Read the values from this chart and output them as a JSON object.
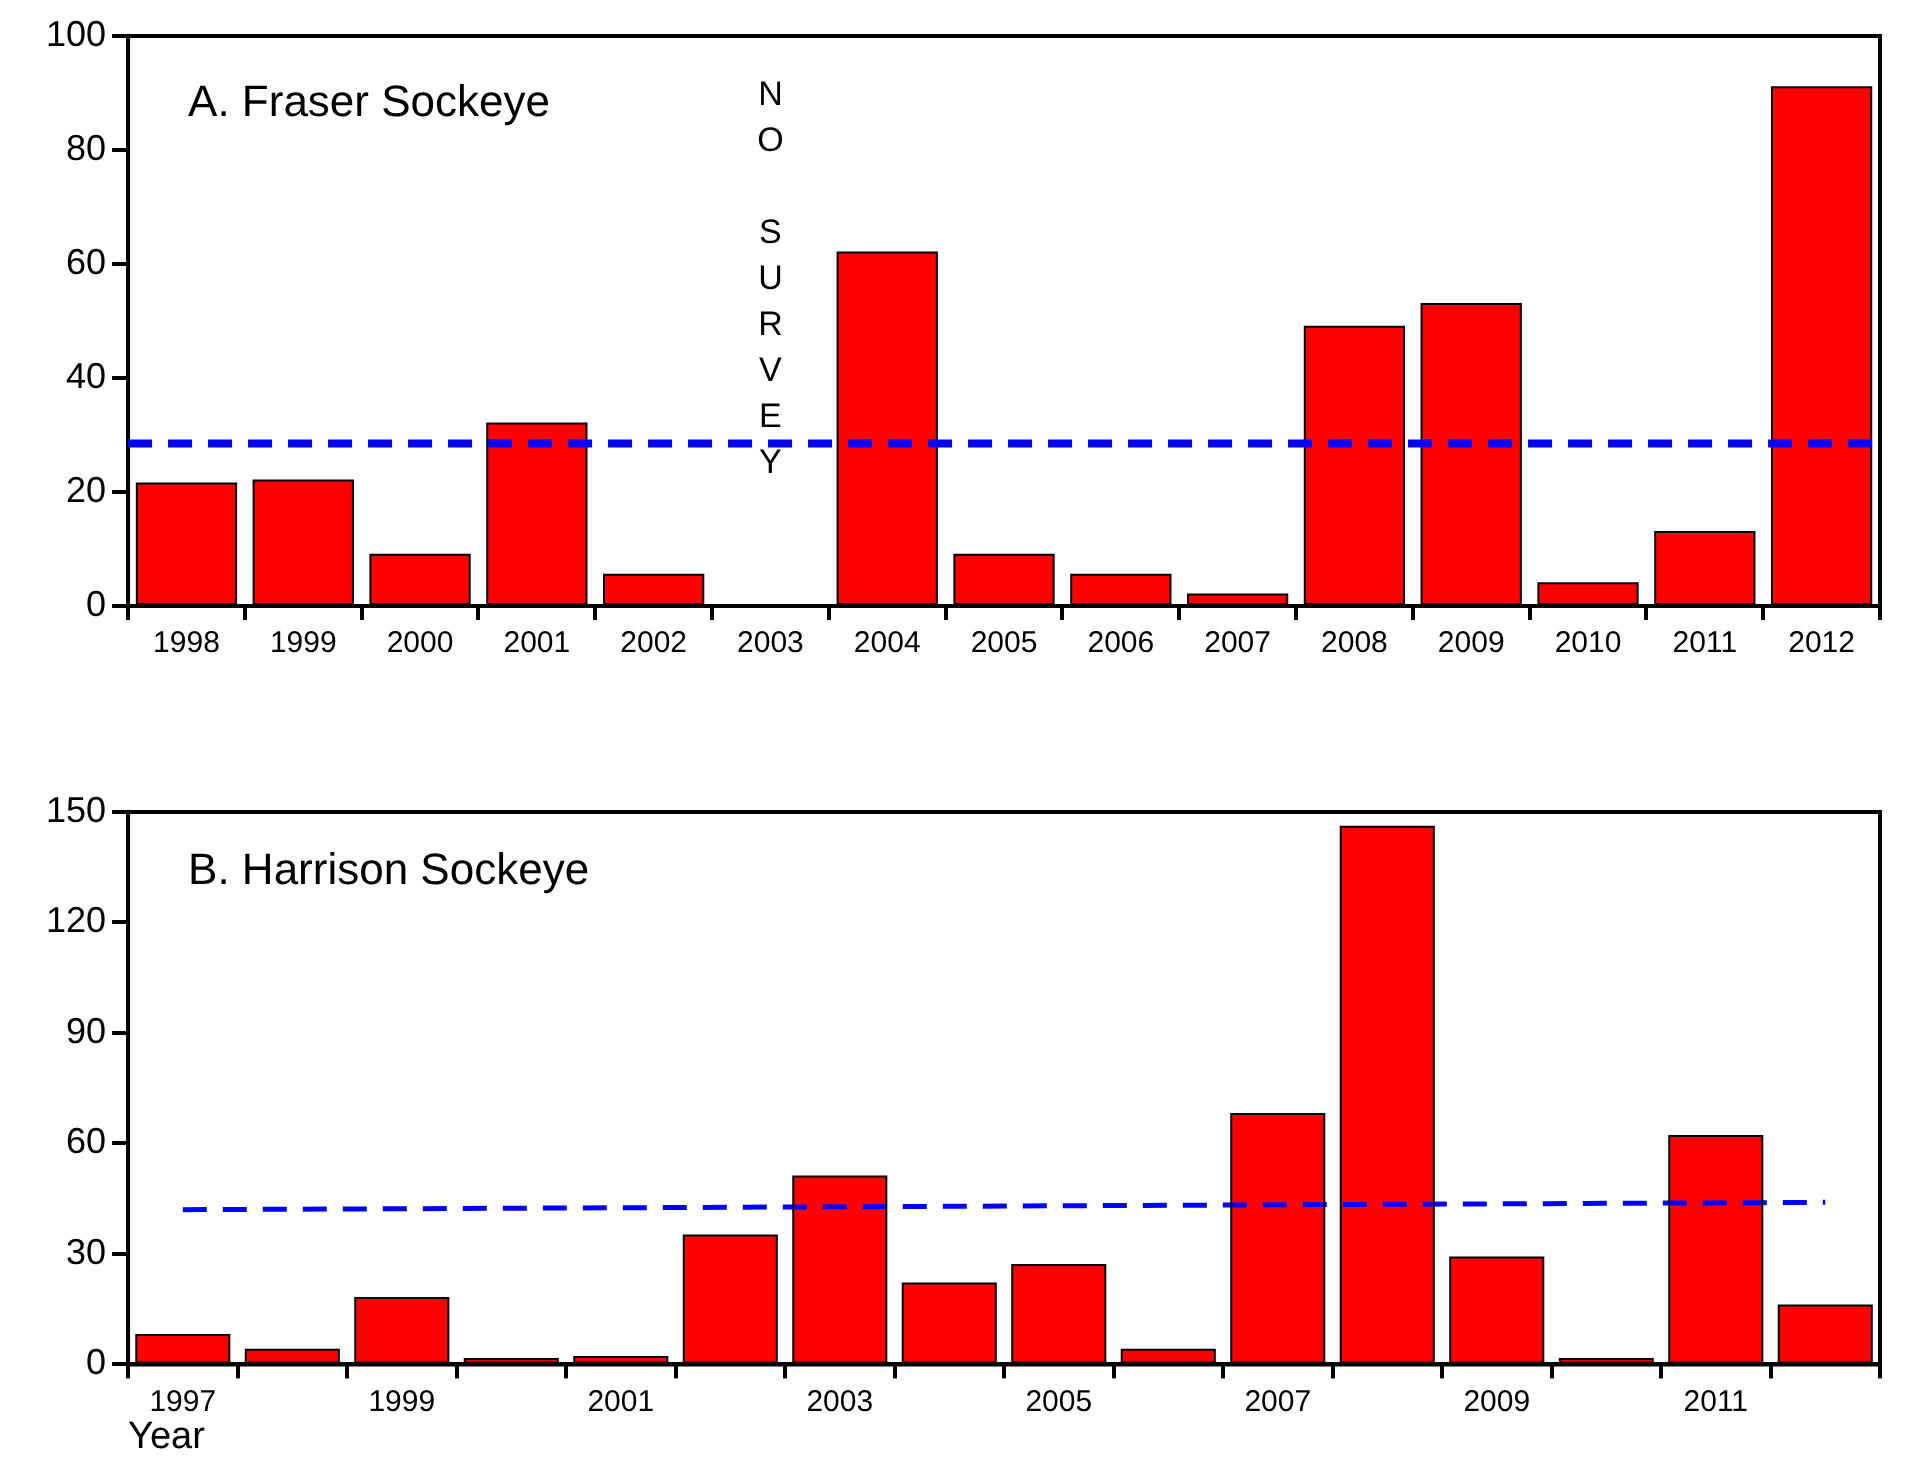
{
  "chart_data": [
    {
      "type": "bar",
      "title": "A. Fraser Sockeye",
      "categories": [
        "1998",
        "1999",
        "2000",
        "2001",
        "2002",
        "2003",
        "2004",
        "2005",
        "2006",
        "2007",
        "2008",
        "2009",
        "2010",
        "2011",
        "2012"
      ],
      "series": [
        {
          "color": "#ff0000",
          "values": [
            21.5,
            22,
            9,
            32,
            5.5,
            null,
            62,
            9,
            5.5,
            2,
            49,
            53,
            4,
            13,
            91
          ]
        }
      ],
      "ylim": [
        0,
        100
      ],
      "yticks": [
        0,
        20,
        40,
        60,
        80,
        100
      ],
      "grid": false,
      "legend": false,
      "ref_lines": [
        {
          "axis": "y",
          "value": 28.5,
          "color": "#0000ff",
          "line_style": "dashed"
        }
      ],
      "annotations": [
        "NO SURVEY"
      ]
    },
    {
      "type": "bar",
      "title": "B. Harrison Sockeye",
      "xlabel": "Year",
      "categories": [
        "1997",
        null,
        "1999",
        null,
        "2001",
        null,
        "2003",
        null,
        "2005",
        null,
        "2007",
        null,
        "2009",
        null,
        "2011",
        null
      ],
      "series": [
        {
          "color": "#ff0000",
          "values": [
            8,
            4,
            18,
            1.5,
            2,
            35,
            51,
            22,
            27,
            4,
            68,
            146,
            29,
            1.5,
            62,
            16
          ]
        },
        {
          "type": "line",
          "color": "#0000ff",
          "line_style": "dashed",
          "marker": "none",
          "values": [
            42,
            null,
            null,
            null,
            null,
            null,
            null,
            null,
            null,
            null,
            null,
            null,
            null,
            null,
            null,
            44
          ]
        }
      ],
      "ylim": [
        0,
        150
      ],
      "yticks": [
        0,
        30,
        60,
        90,
        120,
        150
      ],
      "grid": false,
      "legend": false
    }
  ]
}
